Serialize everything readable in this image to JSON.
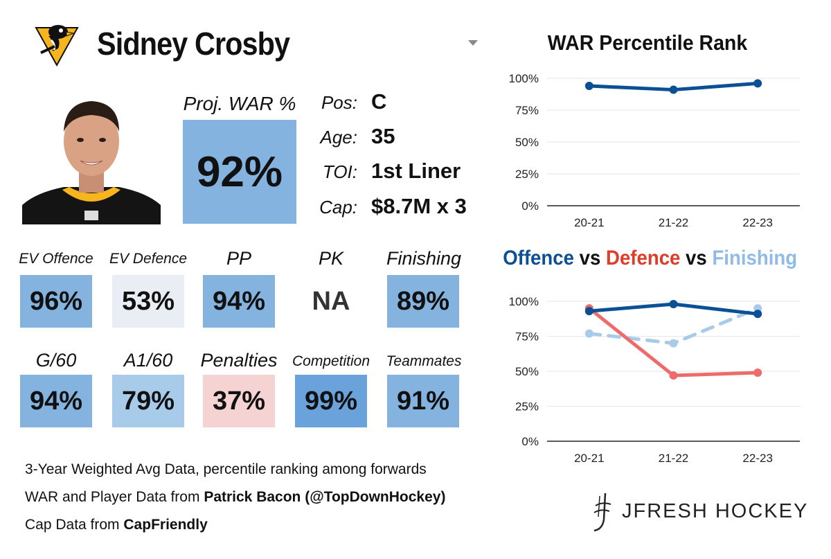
{
  "header": {
    "player_name": "Sidney Crosby",
    "team_logo_icon": "penguins-logo-icon"
  },
  "projection": {
    "label": "Proj. WAR %",
    "value": "92%"
  },
  "info": [
    {
      "label": "Pos:",
      "value": "C"
    },
    {
      "label": "Age:",
      "value": "35"
    },
    {
      "label": "TOI:",
      "value": "1st Liner"
    },
    {
      "label": "Cap:",
      "value": "$8.7M x 3"
    }
  ],
  "stats_row1": [
    {
      "label": "EV Offence",
      "value": "96%"
    },
    {
      "label": "EV Defence",
      "value": "53%"
    },
    {
      "label": "PP",
      "value": "94%"
    },
    {
      "label": "PK",
      "value": "NA"
    },
    {
      "label": "Finishing",
      "value": "89%"
    }
  ],
  "stats_row2": [
    {
      "label": "G/60",
      "value": "94%"
    },
    {
      "label": "A1/60",
      "value": "79%"
    },
    {
      "label": "Penalties",
      "value": "37%"
    },
    {
      "label": "Competition",
      "value": "99%"
    },
    {
      "label": "Teammates",
      "value": "91%"
    }
  ],
  "footer": {
    "line1": "3-Year Weighted Avg Data, percentile ranking among forwards",
    "line2_prefix": "WAR and Player Data from ",
    "line2_bold": "Patrick Bacon (@TopDownHockey)",
    "line3_prefix": "Cap Data from ",
    "line3_bold": "CapFriendly"
  },
  "brand": {
    "name": "JFRESH HOCKEY",
    "icon": "jfresh-mark-icon"
  },
  "colors": {
    "dark_blue": "#0b4f95",
    "red": "#ee6b6b",
    "light_blue": "#9cc3e6",
    "proj_box": "#84b3e0",
    "tile_light": "#e9eef4",
    "tile_pink": "#f6d3d3",
    "gridline": "#e6e6e6",
    "axis": "#222222"
  },
  "chart_data": [
    {
      "type": "line",
      "title": "WAR Percentile Rank",
      "categories": [
        "20-21",
        "21-22",
        "22-23"
      ],
      "ylim": [
        0,
        100
      ],
      "yticks": [
        0,
        25,
        50,
        75,
        100
      ],
      "ytick_labels": [
        "0%",
        "25%",
        "50%",
        "75%",
        "100%"
      ],
      "series": [
        {
          "name": "WAR",
          "color": "#0b4f95",
          "dashed": false,
          "values": [
            94,
            91,
            96
          ]
        }
      ]
    },
    {
      "type": "line",
      "title_parts": [
        {
          "text": "Offence",
          "color": "#0b4f95"
        },
        {
          "text": " vs ",
          "color": "#111111"
        },
        {
          "text": "Defence",
          "color": "#e23b2a"
        },
        {
          "text": " vs ",
          "color": "#111111"
        },
        {
          "text": "Finishing",
          "color": "#8fbce6"
        }
      ],
      "categories": [
        "20-21",
        "21-22",
        "22-23"
      ],
      "ylim": [
        0,
        100
      ],
      "yticks": [
        0,
        25,
        50,
        75,
        100
      ],
      "ytick_labels": [
        "0%",
        "25%",
        "50%",
        "75%",
        "100%"
      ],
      "series": [
        {
          "name": "Finishing",
          "color": "#a9cbea",
          "dashed": true,
          "values": [
            77,
            70,
            95
          ]
        },
        {
          "name": "Defence",
          "color": "#ee6b6b",
          "dashed": false,
          "values": [
            95,
            47,
            49
          ]
        },
        {
          "name": "Offence",
          "color": "#0b4f95",
          "dashed": false,
          "values": [
            93,
            98,
            91
          ]
        }
      ]
    }
  ]
}
